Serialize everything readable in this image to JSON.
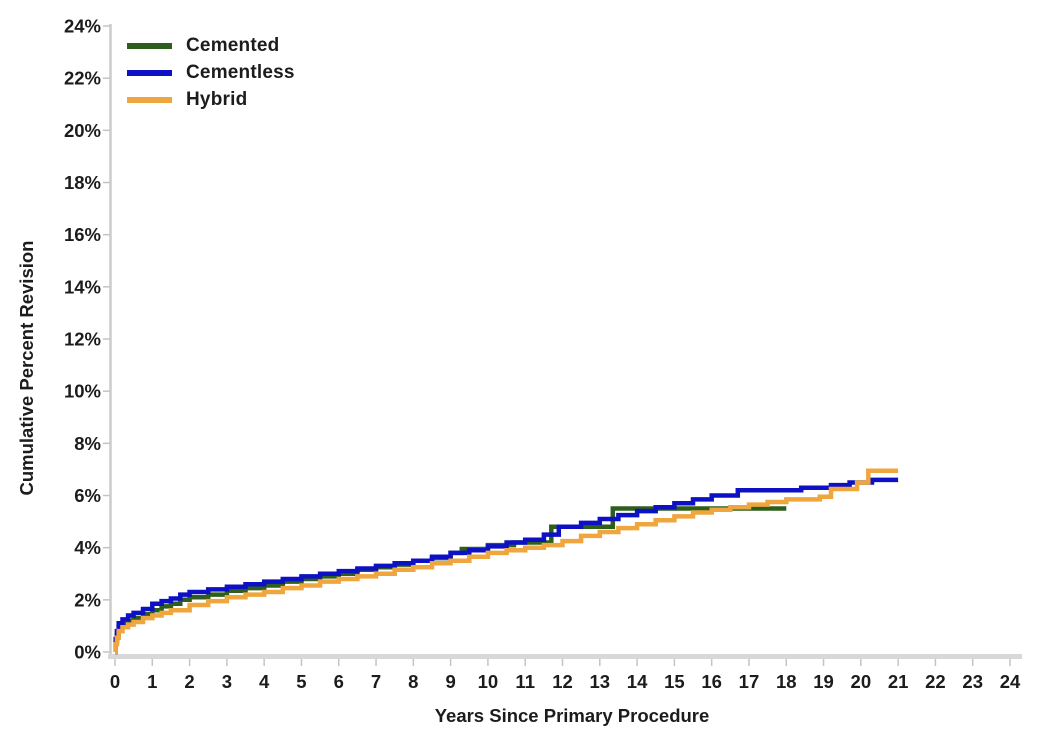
{
  "figure": {
    "background_color": "#ffffff",
    "text_color": "#1c1c1c",
    "axis_line_color": "#d8d8d8",
    "y_axis_line_color": "#cccccc",
    "tick_color": "#c4c4c4"
  },
  "chart_data": {
    "type": "line",
    "subtype": "step-cumulative-incidence",
    "title": "",
    "xlabel": "Years Since Primary Procedure",
    "ylabel": "Cumulative Percent Revision",
    "xlim": [
      0,
      24
    ],
    "ylim": [
      0,
      24
    ],
    "x_ticks": [
      0,
      1,
      2,
      3,
      4,
      5,
      6,
      7,
      8,
      9,
      10,
      11,
      12,
      13,
      14,
      15,
      16,
      17,
      18,
      19,
      20,
      21,
      22,
      23,
      24
    ],
    "x_tick_labels": [
      "0",
      "1",
      "2",
      "3",
      "4",
      "5",
      "6",
      "7",
      "8",
      "9",
      "10",
      "11",
      "12",
      "13",
      "14",
      "15",
      "16",
      "17",
      "18",
      "19",
      "20",
      "21",
      "22",
      "23",
      "24"
    ],
    "y_ticks": [
      0,
      2,
      4,
      6,
      8,
      10,
      12,
      14,
      16,
      18,
      20,
      22,
      24
    ],
    "y_tick_labels": [
      "0%",
      "2%",
      "4%",
      "6%",
      "8%",
      "10%",
      "12%",
      "14%",
      "16%",
      "18%",
      "20%",
      "22%",
      "24%"
    ],
    "grid": false,
    "legend_position": "top-left-inside",
    "legend": [
      "Cemented",
      "Cementless",
      "Hybrid"
    ],
    "series": [
      {
        "name": "Cemented",
        "color": "#2e5e1c",
        "points": [
          [
            0,
            0
          ],
          [
            0.02,
            0.4
          ],
          [
            0.05,
            0.65
          ],
          [
            0.1,
            0.95
          ],
          [
            0.2,
            1.1
          ],
          [
            0.35,
            1.2
          ],
          [
            0.5,
            1.3
          ],
          [
            0.75,
            1.45
          ],
          [
            1,
            1.6
          ],
          [
            1.25,
            1.75
          ],
          [
            1.5,
            1.85
          ],
          [
            1.75,
            2.0
          ],
          [
            2,
            2.1
          ],
          [
            2.5,
            2.2
          ],
          [
            3,
            2.35
          ],
          [
            3.5,
            2.45
          ],
          [
            4,
            2.55
          ],
          [
            4.5,
            2.7
          ],
          [
            5,
            2.8
          ],
          [
            5.5,
            2.9
          ],
          [
            6,
            3.0
          ],
          [
            6.5,
            3.15
          ],
          [
            7,
            3.25
          ],
          [
            7.5,
            3.35
          ],
          [
            8,
            3.5
          ],
          [
            8.5,
            3.6
          ],
          [
            9,
            3.8
          ],
          [
            9.3,
            3.95
          ],
          [
            10,
            4.1
          ],
          [
            10.7,
            4.2
          ],
          [
            11.7,
            4.8
          ],
          [
            13.35,
            5.5
          ],
          [
            18,
            5.5
          ]
        ]
      },
      {
        "name": "Cementless",
        "color": "#0d10c4",
        "points": [
          [
            0,
            0
          ],
          [
            0.02,
            0.5
          ],
          [
            0.05,
            0.8
          ],
          [
            0.1,
            1.1
          ],
          [
            0.2,
            1.25
          ],
          [
            0.35,
            1.4
          ],
          [
            0.5,
            1.5
          ],
          [
            0.75,
            1.65
          ],
          [
            1,
            1.85
          ],
          [
            1.25,
            1.95
          ],
          [
            1.5,
            2.05
          ],
          [
            1.75,
            2.2
          ],
          [
            2,
            2.3
          ],
          [
            2.5,
            2.4
          ],
          [
            3,
            2.5
          ],
          [
            3.5,
            2.6
          ],
          [
            4,
            2.7
          ],
          [
            4.5,
            2.8
          ],
          [
            5,
            2.9
          ],
          [
            5.5,
            3.0
          ],
          [
            6,
            3.1
          ],
          [
            6.5,
            3.2
          ],
          [
            7,
            3.3
          ],
          [
            7.5,
            3.4
          ],
          [
            8,
            3.5
          ],
          [
            8.5,
            3.65
          ],
          [
            9,
            3.8
          ],
          [
            9.5,
            3.9
          ],
          [
            10,
            4.05
          ],
          [
            10.5,
            4.2
          ],
          [
            11,
            4.3
          ],
          [
            11.5,
            4.5
          ],
          [
            11.9,
            4.8
          ],
          [
            12.5,
            4.95
          ],
          [
            13,
            5.1
          ],
          [
            13.5,
            5.25
          ],
          [
            14,
            5.4
          ],
          [
            14.5,
            5.55
          ],
          [
            15,
            5.7
          ],
          [
            15.5,
            5.85
          ],
          [
            16,
            6.0
          ],
          [
            16.7,
            6.2
          ],
          [
            18.4,
            6.3
          ],
          [
            19.2,
            6.4
          ],
          [
            19.7,
            6.5
          ],
          [
            20.3,
            6.6
          ],
          [
            21,
            6.6
          ]
        ]
      },
      {
        "name": "Hybrid",
        "color": "#efa63e",
        "points": [
          [
            0,
            0
          ],
          [
            0.02,
            0.3
          ],
          [
            0.05,
            0.55
          ],
          [
            0.1,
            0.8
          ],
          [
            0.2,
            0.95
          ],
          [
            0.35,
            1.05
          ],
          [
            0.5,
            1.15
          ],
          [
            0.75,
            1.3
          ],
          [
            1,
            1.4
          ],
          [
            1.25,
            1.5
          ],
          [
            1.5,
            1.6
          ],
          [
            2,
            1.8
          ],
          [
            2.5,
            1.95
          ],
          [
            3,
            2.1
          ],
          [
            3.5,
            2.2
          ],
          [
            4,
            2.3
          ],
          [
            4.5,
            2.45
          ],
          [
            5,
            2.55
          ],
          [
            5.5,
            2.7
          ],
          [
            6,
            2.8
          ],
          [
            6.5,
            2.9
          ],
          [
            7,
            3.0
          ],
          [
            7.5,
            3.15
          ],
          [
            8,
            3.25
          ],
          [
            8.5,
            3.4
          ],
          [
            9,
            3.5
          ],
          [
            9.5,
            3.65
          ],
          [
            10,
            3.8
          ],
          [
            10.5,
            3.9
          ],
          [
            11,
            4.0
          ],
          [
            11.5,
            4.1
          ],
          [
            12,
            4.25
          ],
          [
            12.5,
            4.45
          ],
          [
            13,
            4.6
          ],
          [
            13.5,
            4.75
          ],
          [
            14,
            4.9
          ],
          [
            14.5,
            5.05
          ],
          [
            15,
            5.2
          ],
          [
            15.5,
            5.35
          ],
          [
            16,
            5.45
          ],
          [
            16.5,
            5.55
          ],
          [
            17,
            5.65
          ],
          [
            17.5,
            5.75
          ],
          [
            18,
            5.85
          ],
          [
            18.9,
            5.95
          ],
          [
            19.2,
            6.25
          ],
          [
            19.9,
            6.5
          ],
          [
            20.2,
            6.95
          ],
          [
            21,
            6.95
          ]
        ]
      }
    ]
  }
}
